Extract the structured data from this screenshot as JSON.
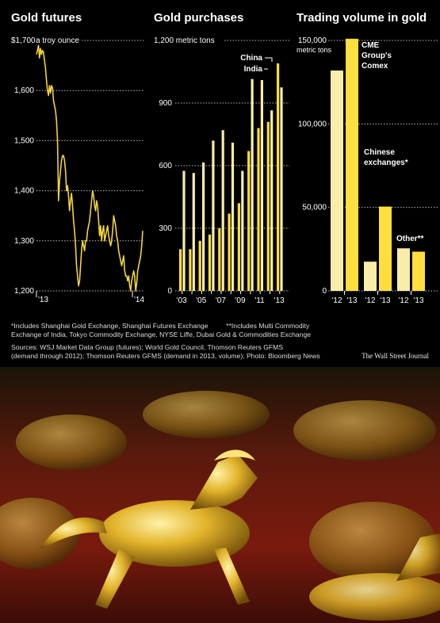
{
  "colors": {
    "background": "#000000",
    "gold_dark": "#FFDE3D",
    "gold_light": "#F9EDAA",
    "line": "#F2D33A"
  },
  "chart_data": [
    {
      "type": "line",
      "title": "Gold futures",
      "unit_label": "$1,700 a troy ounce",
      "y_ticks": [
        "1,700",
        "1,600",
        "1,500",
        "1,400",
        "1,300",
        "1,200"
      ],
      "ylim": [
        1200,
        1700
      ],
      "x_ticks": [
        "'13",
        "'14"
      ],
      "x": [
        2013.0,
        2013.01,
        2013.02,
        2013.03,
        2013.04,
        2013.05,
        2013.06,
        2013.07,
        2013.08,
        2013.09,
        2013.1,
        2013.11,
        2013.12,
        2013.13,
        2013.14,
        2013.15,
        2013.16,
        2013.17,
        2013.18,
        2013.19,
        2013.2,
        2013.21,
        2013.22,
        2013.23,
        2013.24,
        2013.25,
        2013.26,
        2013.27,
        2013.28,
        2013.29,
        2013.3,
        2013.31,
        2013.32,
        2013.33,
        2013.34,
        2013.35,
        2013.36,
        2013.37,
        2013.38,
        2013.39,
        2013.4,
        2013.41,
        2013.42,
        2013.43,
        2013.44,
        2013.45,
        2013.46,
        2013.47,
        2013.48,
        2013.49,
        2013.5,
        2013.51,
        2013.52,
        2013.53,
        2013.54,
        2013.55,
        2013.56,
        2013.57,
        2013.58,
        2013.59,
        2013.6,
        2013.61,
        2013.62,
        2013.63,
        2013.64,
        2013.65,
        2013.66,
        2013.67,
        2013.68,
        2013.69,
        2013.7,
        2013.71,
        2013.72,
        2013.73,
        2013.74,
        2013.75,
        2013.76,
        2013.77,
        2013.78,
        2013.79,
        2013.8,
        2013.81,
        2013.82,
        2013.83,
        2013.84,
        2013.85,
        2013.86,
        2013.87,
        2013.88,
        2013.89,
        2013.9,
        2013.91,
        2013.92,
        2013.93,
        2013.94,
        2013.95,
        2013.96,
        2013.97,
        2013.98,
        2013.99,
        2014.0,
        2014.01,
        2014.02,
        2014.03,
        2014.04,
        2014.05,
        2014.06
      ],
      "values": [
        1672,
        1680,
        1690,
        1665,
        1684,
        1672,
        1680,
        1676,
        1660,
        1645,
        1620,
        1600,
        1590,
        1610,
        1595,
        1610,
        1605,
        1580,
        1570,
        1560,
        1540,
        1500,
        1380,
        1420,
        1440,
        1460,
        1470,
        1470,
        1460,
        1440,
        1400,
        1410,
        1390,
        1360,
        1380,
        1395,
        1370,
        1340,
        1320,
        1290,
        1250,
        1230,
        1210,
        1220,
        1250,
        1280,
        1300,
        1290,
        1280,
        1300,
        1300,
        1320,
        1330,
        1340,
        1360,
        1380,
        1400,
        1390,
        1370,
        1360,
        1380,
        1370,
        1340,
        1310,
        1330,
        1300,
        1320,
        1330,
        1300,
        1310,
        1320,
        1330,
        1310,
        1300,
        1290,
        1300,
        1320,
        1350,
        1340,
        1330,
        1310,
        1300,
        1280,
        1270,
        1260,
        1250,
        1260,
        1270,
        1240,
        1230,
        1230,
        1220,
        1230,
        1210,
        1200,
        1220,
        1230,
        1240,
        1230,
        1200,
        1215,
        1240,
        1250,
        1260,
        1270,
        1290,
        1320
      ]
    },
    {
      "type": "bar",
      "title": "Gold purchases",
      "unit_label": "1,200 metric tons",
      "y_ticks": [
        "1,200",
        "900",
        "600",
        "300",
        "0"
      ],
      "ylim": [
        0,
        1200
      ],
      "x_ticks": [
        "'03",
        "'05",
        "'07",
        "'09",
        "'11",
        "'13"
      ],
      "categories": [
        "2003",
        "2004",
        "2005",
        "2006",
        "2007",
        "2008",
        "2009",
        "2010",
        "2011",
        "2012",
        "2013"
      ],
      "series": [
        {
          "name": "China",
          "values": [
            200,
            200,
            240,
            270,
            300,
            370,
            420,
            670,
            780,
            810,
            1090
          ]
        },
        {
          "name": "India",
          "values": [
            575,
            565,
            615,
            720,
            770,
            710,
            575,
            1015,
            1010,
            865,
            975
          ]
        }
      ],
      "legend": [
        "China",
        "India"
      ]
    },
    {
      "type": "bar",
      "title": "Trading volume in gold",
      "unit_label": "metric tons",
      "y_ticks": [
        "150,000",
        "100,000",
        "50,000",
        "0"
      ],
      "ylim": [
        0,
        150000
      ],
      "groups": [
        {
          "label": "CME Group's Comex",
          "label_lines": [
            "CME",
            "Group's",
            "Comex"
          ],
          "categories": [
            "'12",
            "'13"
          ],
          "values": [
            132000,
            151000
          ]
        },
        {
          "label": "Chinese exchanges*",
          "label_lines": [
            "Chinese",
            "exchanges*"
          ],
          "categories": [
            "'12",
            "'13"
          ],
          "values": [
            17500,
            50500
          ]
        },
        {
          "label": "Other**",
          "label_lines": [
            "Other**"
          ],
          "categories": [
            "'12",
            "'13"
          ],
          "values": [
            25500,
            23500
          ]
        }
      ]
    }
  ],
  "footnotes": {
    "line1_a": "*Includes Shanghai Gold Exchange, Shanghai Futures Exchange",
    "line1_b": "**Includes Multi Commodity",
    "line2": "Exchange of India, Tokyo Commodity Exchange, NYSE Liffe, Dubai Gold & Commodities Exchange"
  },
  "sources": {
    "line1": "Sources: WSJ Market Data Group (futures); World Gold Council, Thomson Reuters GFMS",
    "line2": "(demand through 2012); Thomson Reuters GFMS (demand in 2013, volume); Photo: Bloomberg News"
  },
  "brand": "The Wall Street Journal"
}
